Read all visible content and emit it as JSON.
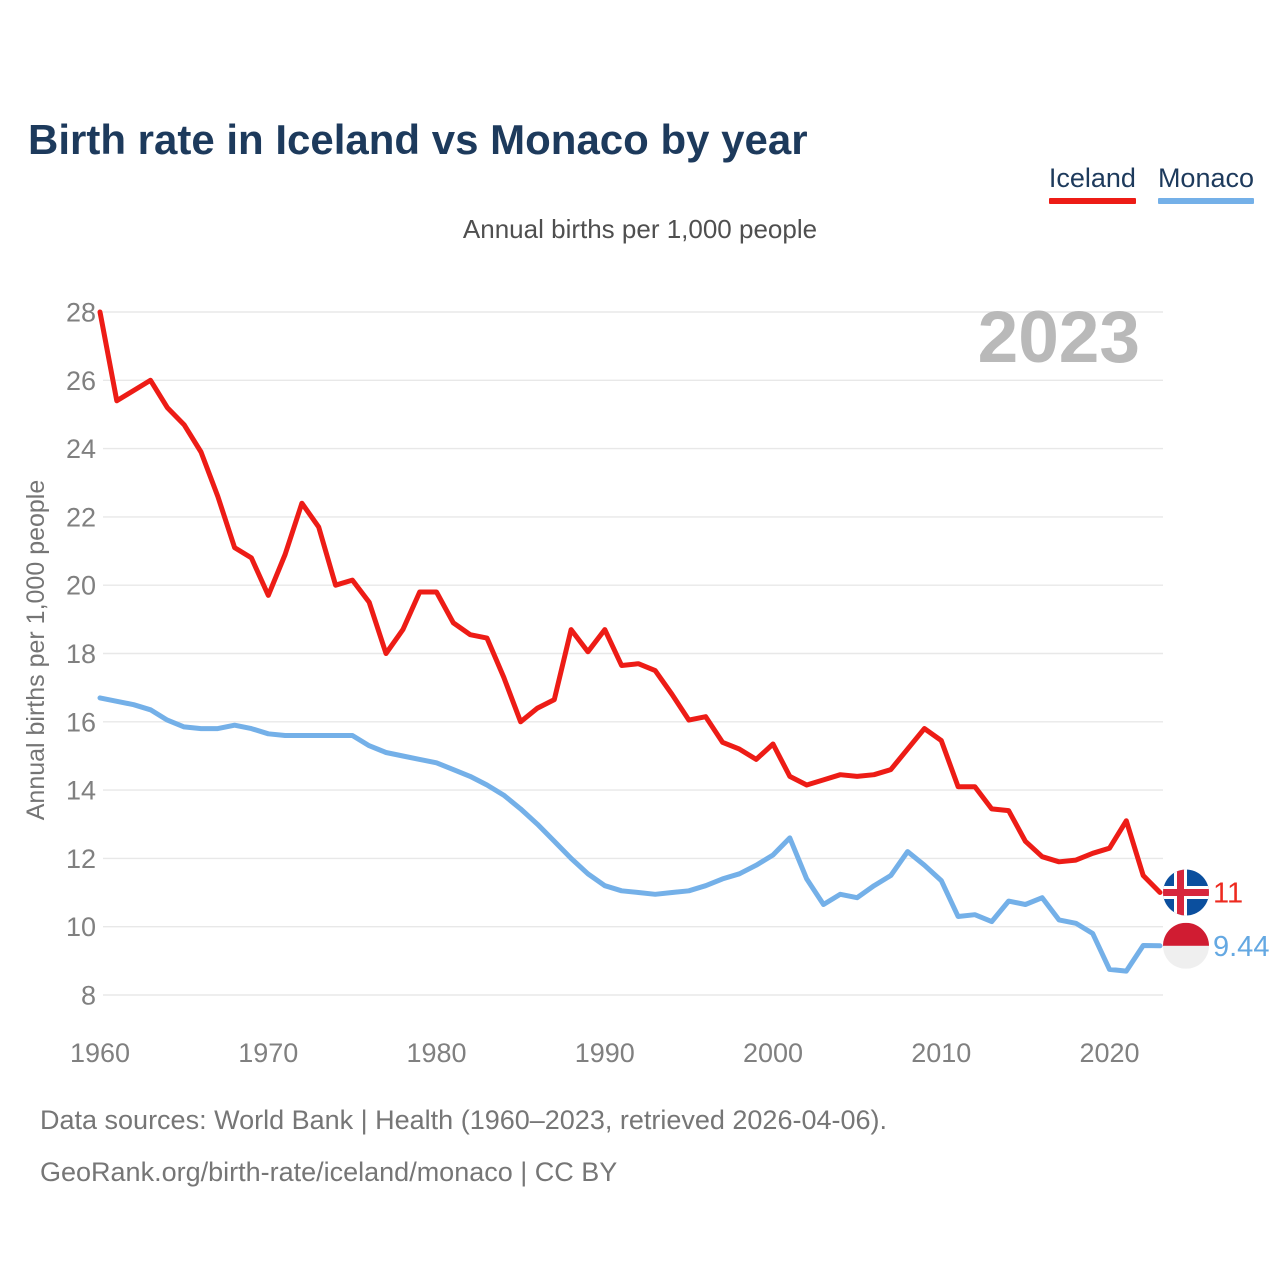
{
  "title": "Birth rate in Iceland vs Monaco by year",
  "subtitle": "Annual births per 1,000 people",
  "watermark": "2023",
  "legend": [
    {
      "label": "Iceland",
      "color": "#ed1c16"
    },
    {
      "label": "Monaco",
      "color": "#74b0e8"
    }
  ],
  "y_axis": {
    "label": "Annual births per 1,000 people",
    "ticks": [
      28,
      26,
      24,
      22,
      20,
      18,
      16,
      14,
      12,
      10,
      8
    ]
  },
  "x_axis": {
    "ticks": [
      1960,
      1970,
      1980,
      1990,
      2000,
      2010,
      2020
    ]
  },
  "end_labels": [
    {
      "series": "Iceland",
      "value": "11",
      "flag": "iceland-flag-icon",
      "text_color": "#ed2a1f"
    },
    {
      "series": "Monaco",
      "value": "9.44",
      "flag": "monaco-flag-icon",
      "text_color": "#64a8e2"
    }
  ],
  "footer": {
    "line1": "Data sources: World Bank | Health (1960–2023, retrieved 2026-04-06).",
    "line2": "GeoRank.org/birth-rate/iceland/monaco | CC BY"
  },
  "chart_data": {
    "type": "line",
    "title": "Birth rate in Iceland vs Monaco by year",
    "ylabel": "Annual births per 1,000 people",
    "ylim": [
      8,
      28
    ],
    "grid": "horizontal",
    "legend_position": "top-right",
    "x": [
      1960,
      1961,
      1962,
      1963,
      1964,
      1965,
      1966,
      1967,
      1968,
      1969,
      1970,
      1971,
      1972,
      1973,
      1974,
      1975,
      1976,
      1977,
      1978,
      1979,
      1980,
      1981,
      1982,
      1983,
      1984,
      1985,
      1986,
      1987,
      1988,
      1989,
      1990,
      1991,
      1992,
      1993,
      1994,
      1995,
      1996,
      1997,
      1998,
      1999,
      2000,
      2001,
      2002,
      2003,
      2004,
      2005,
      2006,
      2007,
      2008,
      2009,
      2010,
      2011,
      2012,
      2013,
      2014,
      2015,
      2016,
      2017,
      2018,
      2019,
      2020,
      2021,
      2022,
      2023
    ],
    "series": [
      {
        "name": "Iceland",
        "color": "#ed1c16",
        "values": [
          28.0,
          25.4,
          25.7,
          26.0,
          25.2,
          24.7,
          23.9,
          22.6,
          21.1,
          20.8,
          19.7,
          20.9,
          22.4,
          21.7,
          20.0,
          20.15,
          19.5,
          18.0,
          18.7,
          19.8,
          19.8,
          18.9,
          18.55,
          18.45,
          17.3,
          16.0,
          16.4,
          16.65,
          18.7,
          18.05,
          18.7,
          17.65,
          17.7,
          17.5,
          16.8,
          16.05,
          16.15,
          15.4,
          15.2,
          14.9,
          15.35,
          14.4,
          14.15,
          14.3,
          14.45,
          14.4,
          14.45,
          14.6,
          15.2,
          15.8,
          15.45,
          14.1,
          14.1,
          13.45,
          13.4,
          12.5,
          12.05,
          11.9,
          11.95,
          12.15,
          12.3,
          13.1,
          11.5,
          11.0
        ]
      },
      {
        "name": "Monaco",
        "color": "#74b0e8",
        "values": [
          16.7,
          16.6,
          16.5,
          16.35,
          16.05,
          15.85,
          15.8,
          15.8,
          15.9,
          15.8,
          15.65,
          15.6,
          15.6,
          15.6,
          15.6,
          15.6,
          15.3,
          15.1,
          15.0,
          14.9,
          14.8,
          14.6,
          14.4,
          14.15,
          13.85,
          13.45,
          13.0,
          12.5,
          12.0,
          11.55,
          11.2,
          11.05,
          11.0,
          10.95,
          11.0,
          11.05,
          11.2,
          11.4,
          11.55,
          11.8,
          12.1,
          12.6,
          11.4,
          10.65,
          10.95,
          10.85,
          11.2,
          11.5,
          12.2,
          11.8,
          11.35,
          10.3,
          10.35,
          10.15,
          10.75,
          10.65,
          10.85,
          10.2,
          10.1,
          9.8,
          8.75,
          8.7,
          9.45,
          9.44
        ]
      }
    ]
  }
}
